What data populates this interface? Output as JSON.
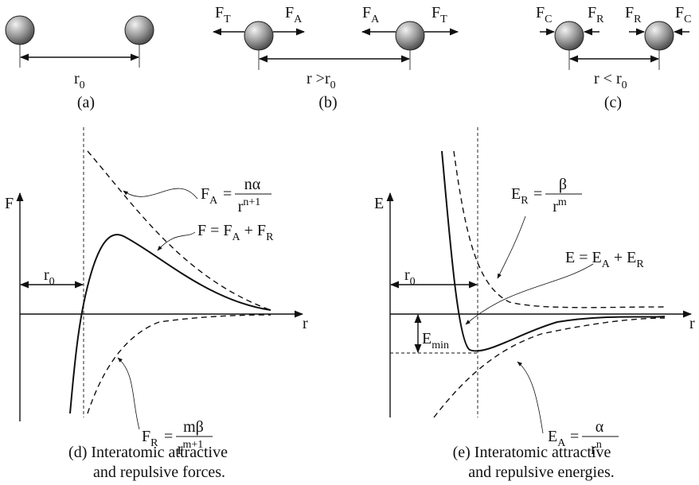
{
  "panels": {
    "a": {
      "distance": [
        "r",
        "0"
      ],
      "caption": "(a)"
    },
    "b": {
      "forces": [
        [
          "F",
          "T"
        ],
        [
          "F",
          "A"
        ],
        [
          "F",
          "A"
        ],
        [
          "F",
          "T"
        ]
      ],
      "distance": [
        "r >r",
        "0"
      ],
      "caption": "(b)"
    },
    "c": {
      "forces": [
        [
          "F",
          "C"
        ],
        [
          "F",
          "R"
        ],
        [
          "F",
          "R"
        ],
        [
          "F",
          "C"
        ]
      ],
      "distance": [
        "r < r",
        "0"
      ],
      "caption": "(c)"
    },
    "d": {
      "y_axis": "F",
      "x_axis": "r",
      "r0": [
        "r",
        "0"
      ],
      "fa": {
        "lhs": [
          "F",
          "A"
        ],
        "eq": "=",
        "num": "nα",
        "den": [
          "r",
          "n+1"
        ]
      },
      "sum": [
        "F  =  F",
        "A",
        " + F",
        "R"
      ],
      "fr": {
        "lhs": [
          "F",
          "R"
        ],
        "eq": "=",
        "num": "mβ",
        "den": [
          "r",
          "m+1"
        ]
      },
      "caption": [
        "(d) Interatomic attractive",
        "and repulsive forces."
      ]
    },
    "e": {
      "y_axis": "E",
      "x_axis": "r",
      "r0": [
        "r",
        "0"
      ],
      "emin": [
        "E",
        "min"
      ],
      "er": {
        "lhs": [
          "E",
          "R"
        ],
        "eq": "=",
        "num": "β",
        "den": [
          "r",
          "m"
        ]
      },
      "sum": [
        "E  =  E",
        "A",
        " + E",
        "R"
      ],
      "ea": {
        "lhs": [
          "E",
          "A"
        ],
        "eq": "=",
        "num": "α",
        "den": [
          "r",
          "n"
        ]
      },
      "caption": [
        "(e) Interatomic attractive",
        "and repulsive energies."
      ]
    }
  }
}
